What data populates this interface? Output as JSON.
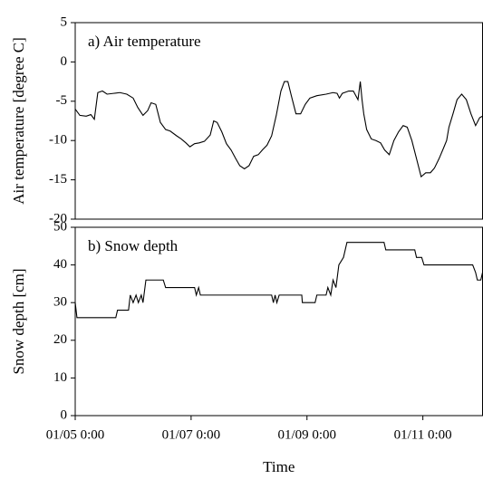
{
  "chart_data": [
    {
      "type": "line",
      "title": "a) Air temperature",
      "y_label": "Air temperature [degree C]",
      "xlim": [
        0,
        7.03
      ],
      "ylim": [
        -20,
        5
      ],
      "yticks": [
        -20,
        -15,
        -10,
        -5,
        0,
        5
      ],
      "color": "#000000",
      "x": [
        0,
        0.08,
        0.19,
        0.27,
        0.33,
        0.39,
        0.47,
        0.55,
        0.66,
        0.77,
        0.89,
        1.0,
        1.08,
        1.17,
        1.25,
        1.31,
        1.39,
        1.47,
        1.56,
        1.64,
        1.75,
        1.83,
        1.91,
        1.98,
        2.06,
        2.14,
        2.23,
        2.33,
        2.39,
        2.45,
        2.53,
        2.61,
        2.69,
        2.77,
        2.84,
        2.92,
        3.0,
        3.08,
        3.16,
        3.23,
        3.31,
        3.39,
        3.47,
        3.55,
        3.61,
        3.67,
        3.73,
        3.81,
        3.89,
        3.97,
        4.05,
        4.17,
        4.33,
        4.45,
        4.52,
        4.56,
        4.61,
        4.72,
        4.8,
        4.88,
        4.92,
        4.95,
        4.98,
        5.03,
        5.11,
        5.19,
        5.27,
        5.34,
        5.42,
        5.5,
        5.58,
        5.66,
        5.73,
        5.81,
        5.89,
        5.97,
        6.05,
        6.13,
        6.2,
        6.28,
        6.36,
        6.41,
        6.45,
        6.52,
        6.59,
        6.67,
        6.75,
        6.83,
        6.91,
        6.98,
        7.03
      ],
      "values": [
        -6,
        -6.8,
        -6.9,
        -6.7,
        -7.3,
        -3.9,
        -3.7,
        -4.1,
        -4,
        -3.9,
        -4.1,
        -4.6,
        -5.8,
        -6.8,
        -6.2,
        -5.2,
        -5.4,
        -7.7,
        -8.6,
        -8.8,
        -9.4,
        -9.8,
        -10.3,
        -10.8,
        -10.4,
        -10.3,
        -10.1,
        -9.3,
        -7.5,
        -7.7,
        -8.9,
        -10.4,
        -11.2,
        -12.3,
        -13.2,
        -13.6,
        -13.2,
        -12,
        -11.8,
        -11.2,
        -10.6,
        -9.4,
        -6.8,
        -3.7,
        -2.5,
        -2.5,
        -4.3,
        -6.6,
        -6.6,
        -5.4,
        -4.6,
        -4.3,
        -4.1,
        -3.9,
        -4,
        -4.6,
        -4,
        -3.7,
        -3.7,
        -4.8,
        -2.5,
        -4.8,
        -6.6,
        -8.6,
        -9.8,
        -10,
        -10.3,
        -11.2,
        -11.8,
        -10,
        -8.9,
        -8.1,
        -8.3,
        -10,
        -12.3,
        -14.6,
        -14.1,
        -14.1,
        -13.5,
        -12.3,
        -10.9,
        -10,
        -8.3,
        -6.6,
        -4.8,
        -4.1,
        -4.8,
        -6.6,
        -8.1,
        -7.1,
        -6.9
      ]
    },
    {
      "type": "line",
      "title": "b) Snow depth",
      "y_label": "Snow depth [cm]",
      "x_label": "Time",
      "xlim": [
        0,
        7.03
      ],
      "ylim": [
        0,
        50
      ],
      "yticks": [
        0,
        10,
        20,
        30,
        40,
        50
      ],
      "color": "#000000",
      "xticks": [
        {
          "value": 0,
          "label": "01/05 0:00"
        },
        {
          "value": 2,
          "label": "01/07 0:00"
        },
        {
          "value": 4,
          "label": "01/09 0:00"
        },
        {
          "value": 6,
          "label": "01/11 0:00"
        }
      ],
      "x": [
        0,
        0.03,
        0.7,
        0.73,
        0.92,
        0.95,
        1.0,
        1.05,
        1.09,
        1.14,
        1.17,
        1.22,
        1.52,
        1.56,
        2.06,
        2.09,
        2.13,
        2.16,
        3.39,
        3.42,
        3.45,
        3.48,
        3.52,
        3.91,
        3.92,
        4.14,
        4.17,
        4.33,
        4.36,
        4.41,
        4.45,
        4.5,
        4.55,
        4.63,
        4.69,
        5.33,
        5.36,
        5.86,
        5.89,
        5.98,
        6.02,
        6.86,
        6.91,
        6.94,
        7.0,
        7.03
      ],
      "values": [
        30,
        26,
        26,
        28,
        28,
        32,
        30,
        32,
        30,
        32,
        30,
        36,
        36,
        34,
        34,
        32,
        34,
        32,
        32,
        30,
        32,
        30,
        32,
        32,
        30,
        30,
        32,
        32,
        34,
        32,
        36,
        34,
        40,
        42,
        46,
        46,
        44,
        44,
        42,
        42,
        40,
        40,
        38,
        36,
        36,
        38
      ]
    }
  ]
}
